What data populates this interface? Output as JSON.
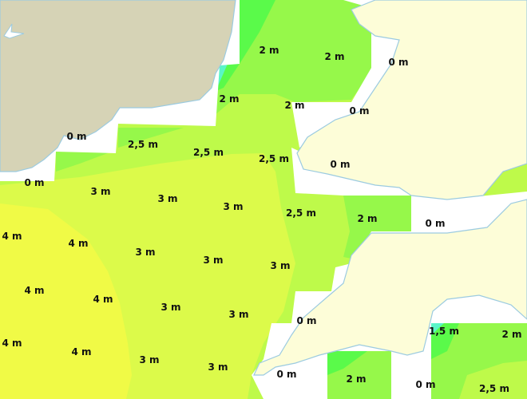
{
  "map": {
    "colors": {
      "land_west": "#d6d3b6",
      "land_east": "#fdfdd8",
      "coastline": "#9ccbe0",
      "no_data": "#ffffff",
      "h_1": "#5af5c8",
      "h_1_5": "#5afa4a",
      "h_2": "#96f84a",
      "h_2_5": "#befa4a",
      "h_3": "#dcfa4a",
      "h_4": "#f0fa46"
    },
    "labels": [
      "2 m",
      "2 m",
      "0 m",
      "2 m",
      "2 m",
      "0 m",
      "0 m",
      "2,5 m",
      "2,5 m",
      "2,5 m",
      "0 m",
      "0 m",
      "3 m",
      "3 m",
      "3 m",
      "2,5 m",
      "2 m",
      "0 m",
      "4 m",
      "4 m",
      "3 m",
      "3 m",
      "3 m",
      "4 m",
      "4 m",
      "3 m",
      "3 m",
      "0 m",
      "1,5 m",
      "2 m",
      "4 m",
      "4 m",
      "3 m",
      "3 m",
      "0 m",
      "2 m",
      "0 m",
      "2,5 m"
    ]
  }
}
